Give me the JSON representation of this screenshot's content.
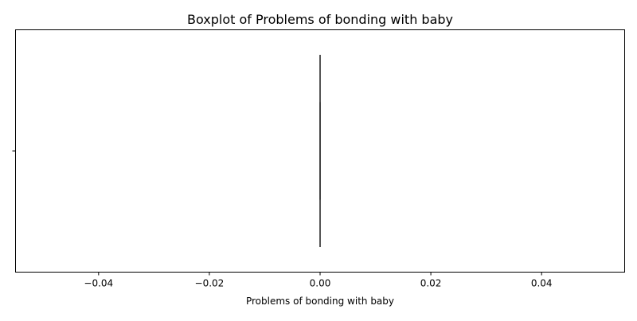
{
  "chart_data": {
    "type": "box",
    "title": "Boxplot of Problems of bonding with baby",
    "xlabel": "Problems of bonding with baby",
    "ylabel": "",
    "orientation": "horizontal",
    "xlim": [
      -0.055,
      0.055
    ],
    "xticks": [
      -0.04,
      -0.02,
      0.0,
      0.02,
      0.04
    ],
    "xtick_labels": [
      "−0.04",
      "−0.02",
      "0.00",
      "0.02",
      "0.04"
    ],
    "yticks": [
      ""
    ],
    "grid": false,
    "series": [
      {
        "min": 0.0,
        "q1": 0.0,
        "median": 0.0,
        "q3": 0.0,
        "max": 0.0,
        "outliers": []
      }
    ],
    "colors": {
      "box_edge": "#3f3f3f",
      "axis": "#000000"
    }
  }
}
